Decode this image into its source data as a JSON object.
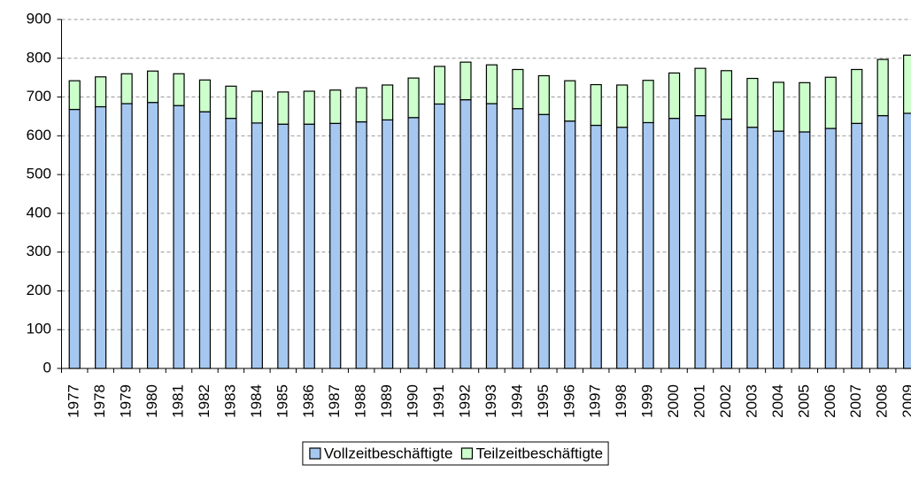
{
  "chart_data": {
    "type": "bar",
    "stacked": true,
    "categories": [
      "1977",
      "1978",
      "1979",
      "1980",
      "1981",
      "1982",
      "1983",
      "1984",
      "1985",
      "1986",
      "1987",
      "1988",
      "1989",
      "1990",
      "1991",
      "1992",
      "1993",
      "1994",
      "1995",
      "1996",
      "1997",
      "1998",
      "1999",
      "2000",
      "2001",
      "2002",
      "2003",
      "2004",
      "2005",
      "2006",
      "2007",
      "2008",
      "2009"
    ],
    "series": [
      {
        "name": "Vollzeitbeschäftigte",
        "color": "#a6c8f0",
        "values": [
          668,
          675,
          683,
          686,
          678,
          662,
          645,
          633,
          630,
          630,
          632,
          636,
          641,
          647,
          682,
          693,
          683,
          670,
          655,
          638,
          627,
          622,
          634,
          645,
          652,
          643,
          622,
          612,
          610,
          619,
          632,
          652,
          658
        ]
      },
      {
        "name": "Teilzeitbeschäftigte",
        "color": "#ccffcc",
        "values": [
          74,
          77,
          77,
          81,
          82,
          82,
          83,
          82,
          83,
          85,
          86,
          88,
          90,
          102,
          97,
          97,
          100,
          101,
          100,
          104,
          105,
          109,
          109,
          117,
          122,
          125,
          126,
          126,
          127,
          132,
          139,
          145,
          150
        ]
      }
    ],
    "ylim": [
      0,
      900
    ],
    "yticks": [
      0,
      100,
      200,
      300,
      400,
      500,
      600,
      700,
      800,
      900
    ],
    "grid": true,
    "legend": "bottom"
  }
}
